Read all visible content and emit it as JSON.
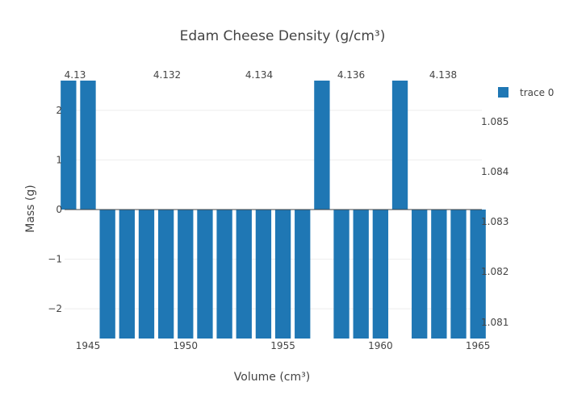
{
  "chart_data": {
    "type": "bar",
    "title": "Edam Cheese Density (g/cm³)",
    "xlabel": "Volume (cm³)",
    "ylabel": "Mass (g)",
    "xlim": [
      1943.8,
      1965.2
    ],
    "ylim": [
      -2.6,
      2.6
    ],
    "x_ticks": [
      "1945",
      "1950",
      "1955",
      "1960",
      "1965"
    ],
    "y_ticks": [
      "−2",
      "−1",
      "0",
      "1",
      "2"
    ],
    "top_axis_ticks": [
      "4.13",
      "4.132",
      "4.134",
      "4.136",
      "4.138"
    ],
    "right_axis_ticks": [
      "1.085",
      "1.084",
      "1.083",
      "1.082",
      "1.081"
    ],
    "legend_position": "top-right",
    "series": [
      {
        "name": "trace 0",
        "color": "#1f77b4",
        "x": [
          1944,
          1945,
          1946,
          1947,
          1948,
          1949,
          1950,
          1951,
          1952,
          1953,
          1954,
          1955,
          1956,
          1957,
          1958,
          1959,
          1960,
          1961,
          1962,
          1963,
          1964,
          1965
        ],
        "values": [
          2.6,
          2.6,
          -2.6,
          -2.6,
          -2.6,
          -2.6,
          -2.6,
          -2.6,
          -2.6,
          -2.6,
          -2.6,
          -2.6,
          -2.6,
          2.6,
          -2.6,
          -2.6,
          -2.6,
          2.6,
          -2.6,
          -2.6,
          -2.6,
          -2.6
        ]
      }
    ]
  }
}
